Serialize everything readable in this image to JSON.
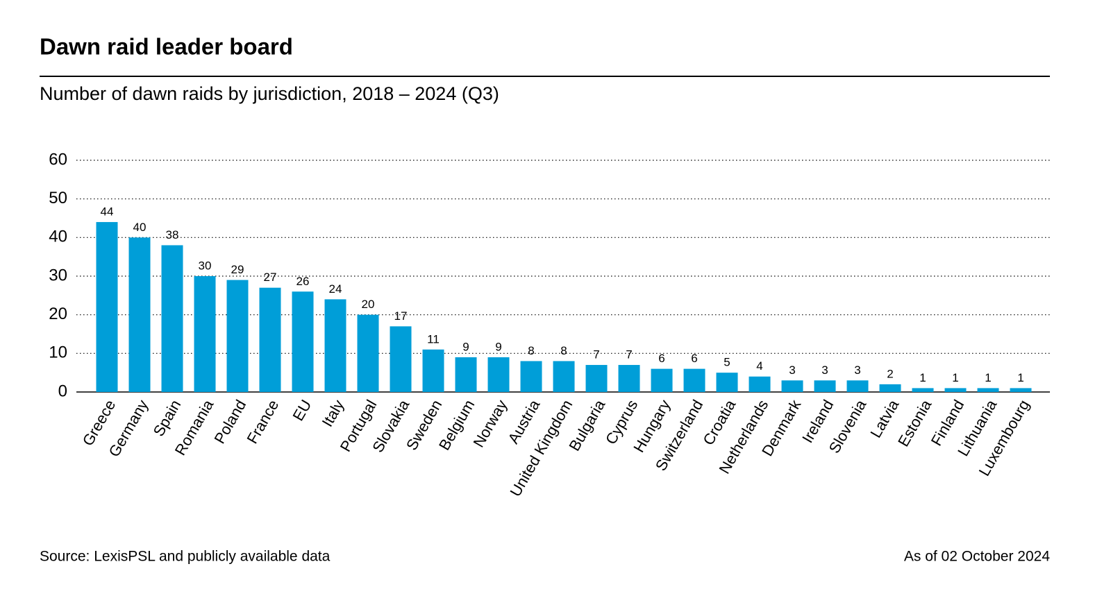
{
  "chart_data": {
    "type": "bar",
    "title": "Dawn raid leader board",
    "subtitle": "Number of dawn raids by jurisdiction, 2018 – 2024 (Q3)",
    "source": "Source: LexisPSL and publicly available data",
    "note": "As of 02 October 2024",
    "categories": [
      "Greece",
      "Germany",
      "Spain",
      "Romania",
      "Poland",
      "France",
      "EU",
      "Italy",
      "Portugal",
      "Slovakia",
      "Sweden",
      "Belgium",
      "Norway",
      "Austria",
      "United Kingdom",
      "Bulgaria",
      "Cyprus",
      "Hungary",
      "Switzerland",
      "Croatia",
      "Netherlands",
      "Denmark",
      "Ireland",
      "Slovenia",
      "Latvia",
      "Estonia",
      "Finland",
      "Lithuania",
      "Luxembourg"
    ],
    "values": [
      44,
      40,
      38,
      30,
      29,
      27,
      26,
      24,
      20,
      17,
      11,
      9,
      9,
      8,
      8,
      7,
      7,
      6,
      6,
      5,
      4,
      3,
      3,
      3,
      2,
      1,
      1,
      1,
      1
    ],
    "color": "#009ed8",
    "ylim": [
      0,
      60
    ],
    "yticks": [
      0,
      10,
      20,
      30,
      40,
      50,
      60
    ],
    "grid": true
  }
}
